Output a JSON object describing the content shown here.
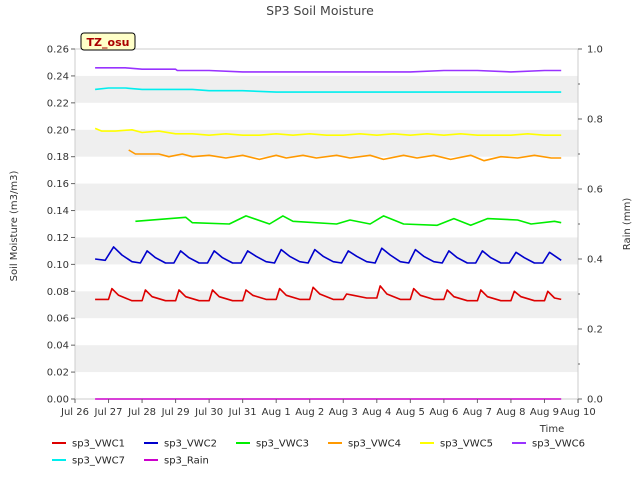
{
  "chart_data": {
    "type": "line",
    "title": "SP3 Soil Moisture",
    "xlabel": "Time",
    "ylabel": "Soil Moisture (m3/m3)",
    "y2label": "Rain (mm)",
    "badge": "TZ_osu",
    "xlim": [
      0,
      15
    ],
    "ylim": [
      0,
      0.26
    ],
    "y2lim": [
      0,
      1.0
    ],
    "x_ticks": [
      "Jul 26",
      "Jul 27",
      "Jul 28",
      "Jul 29",
      "Jul 30",
      "Jul 31",
      "Aug 1",
      "Aug 2",
      "Aug 3",
      "Aug 4",
      "Aug 5",
      "Aug 6",
      "Aug 7",
      "Aug 8",
      "Aug 9",
      "Aug 10"
    ],
    "y_ticks": [
      "0.00",
      "0.02",
      "0.04",
      "0.06",
      "0.08",
      "0.10",
      "0.12",
      "0.14",
      "0.16",
      "0.18",
      "0.20",
      "0.22",
      "0.24",
      "0.26"
    ],
    "y2_ticks": [
      "0.0",
      "0.2",
      "0.4",
      "0.6",
      "0.8",
      "1.0"
    ],
    "grid": "horizontal bands",
    "legend": "bottom",
    "series": [
      {
        "name": "sp3_VWC1",
        "color": "#dd0000",
        "axis": "left",
        "x": [
          0.6,
          1.0,
          1.1,
          1.3,
          1.7,
          2.0,
          2.1,
          2.3,
          2.7,
          3.0,
          3.1,
          3.3,
          3.7,
          4.0,
          4.1,
          4.3,
          4.7,
          5.0,
          5.1,
          5.3,
          5.7,
          6.0,
          6.1,
          6.3,
          6.7,
          7.0,
          7.1,
          7.3,
          7.7,
          8.0,
          8.1,
          8.3,
          8.7,
          9.0,
          9.1,
          9.3,
          9.7,
          10.0,
          10.1,
          10.3,
          10.7,
          11.0,
          11.1,
          11.3,
          11.7,
          12.0,
          12.1,
          12.3,
          12.7,
          13.0,
          13.1,
          13.3,
          13.7,
          14.0,
          14.1,
          14.3,
          14.5
        ],
        "y": [
          0.074,
          0.074,
          0.082,
          0.077,
          0.073,
          0.073,
          0.081,
          0.076,
          0.073,
          0.073,
          0.081,
          0.076,
          0.073,
          0.073,
          0.081,
          0.076,
          0.073,
          0.073,
          0.081,
          0.077,
          0.074,
          0.074,
          0.082,
          0.077,
          0.074,
          0.074,
          0.083,
          0.078,
          0.074,
          0.074,
          0.078,
          0.077,
          0.075,
          0.075,
          0.084,
          0.078,
          0.074,
          0.074,
          0.082,
          0.077,
          0.074,
          0.074,
          0.081,
          0.076,
          0.073,
          0.073,
          0.081,
          0.076,
          0.073,
          0.073,
          0.08,
          0.076,
          0.073,
          0.073,
          0.08,
          0.075,
          0.074
        ]
      },
      {
        "name": "sp3_VWC2",
        "color": "#0000cc",
        "axis": "left",
        "x": [
          0.6,
          0.9,
          1.15,
          1.4,
          1.7,
          1.95,
          2.15,
          2.4,
          2.7,
          2.95,
          3.15,
          3.4,
          3.7,
          3.95,
          4.15,
          4.4,
          4.7,
          4.95,
          5.15,
          5.4,
          5.7,
          5.95,
          6.15,
          6.4,
          6.7,
          6.95,
          7.15,
          7.4,
          7.7,
          7.95,
          8.15,
          8.4,
          8.7,
          8.95,
          9.15,
          9.4,
          9.7,
          9.95,
          10.15,
          10.4,
          10.7,
          10.95,
          11.15,
          11.4,
          11.7,
          11.95,
          12.15,
          12.4,
          12.7,
          12.95,
          13.15,
          13.4,
          13.7,
          13.95,
          14.15,
          14.5
        ],
        "y": [
          0.104,
          0.103,
          0.113,
          0.107,
          0.102,
          0.101,
          0.11,
          0.105,
          0.101,
          0.101,
          0.11,
          0.105,
          0.101,
          0.101,
          0.11,
          0.105,
          0.101,
          0.101,
          0.11,
          0.106,
          0.102,
          0.101,
          0.111,
          0.106,
          0.102,
          0.101,
          0.111,
          0.106,
          0.102,
          0.101,
          0.11,
          0.106,
          0.102,
          0.101,
          0.112,
          0.107,
          0.102,
          0.101,
          0.111,
          0.106,
          0.102,
          0.101,
          0.11,
          0.105,
          0.101,
          0.101,
          0.11,
          0.105,
          0.101,
          0.101,
          0.109,
          0.105,
          0.101,
          0.101,
          0.109,
          0.103
        ]
      },
      {
        "name": "sp3_VWC3",
        "color": "#00ee00",
        "axis": "left",
        "x": [
          1.8,
          3.3,
          3.5,
          4.6,
          5.1,
          5.8,
          6.2,
          6.5,
          7.8,
          8.2,
          8.8,
          9.2,
          9.8,
          10.8,
          11.3,
          11.8,
          12.3,
          13.2,
          13.6,
          14.3,
          14.5
        ],
        "y": [
          0.132,
          0.135,
          0.131,
          0.13,
          0.136,
          0.13,
          0.136,
          0.132,
          0.13,
          0.133,
          0.13,
          0.136,
          0.13,
          0.129,
          0.134,
          0.129,
          0.134,
          0.133,
          0.13,
          0.132,
          0.131
        ]
      },
      {
        "name": "sp3_VWC4",
        "color": "#ff9900",
        "axis": "left",
        "x": [
          1.6,
          1.8,
          2.5,
          2.8,
          3.2,
          3.5,
          4.0,
          4.5,
          5.0,
          5.5,
          6.0,
          6.3,
          6.8,
          7.2,
          7.8,
          8.2,
          8.8,
          9.2,
          9.8,
          10.2,
          10.7,
          11.2,
          11.8,
          12.2,
          12.7,
          13.2,
          13.7,
          14.2,
          14.5
        ],
        "y": [
          0.185,
          0.182,
          0.182,
          0.18,
          0.182,
          0.18,
          0.181,
          0.179,
          0.181,
          0.178,
          0.181,
          0.179,
          0.181,
          0.179,
          0.181,
          0.179,
          0.181,
          0.178,
          0.181,
          0.179,
          0.181,
          0.178,
          0.181,
          0.177,
          0.18,
          0.179,
          0.181,
          0.179,
          0.179
        ]
      },
      {
        "name": "sp3_VWC5",
        "color": "#ffff00",
        "axis": "left",
        "x": [
          0.6,
          0.8,
          1.2,
          1.7,
          2.0,
          2.5,
          3.0,
          3.5,
          4.0,
          4.5,
          5.0,
          5.5,
          6.0,
          6.5,
          7.0,
          7.5,
          8.0,
          8.5,
          9.0,
          9.5,
          10.0,
          10.5,
          11.0,
          11.5,
          12.0,
          12.5,
          13.0,
          13.5,
          14.0,
          14.5
        ],
        "y": [
          0.201,
          0.199,
          0.199,
          0.2,
          0.198,
          0.199,
          0.197,
          0.197,
          0.196,
          0.197,
          0.196,
          0.196,
          0.197,
          0.196,
          0.197,
          0.196,
          0.196,
          0.197,
          0.196,
          0.197,
          0.196,
          0.197,
          0.196,
          0.197,
          0.196,
          0.196,
          0.196,
          0.197,
          0.196,
          0.196
        ]
      },
      {
        "name": "sp3_VWC6",
        "color": "#9933ff",
        "axis": "left",
        "x": [
          0.6,
          1.5,
          2.0,
          3.0,
          3.05,
          4.0,
          5.0,
          6.0,
          7.0,
          8.0,
          9.0,
          10.0,
          11.0,
          12.0,
          13.0,
          14.0,
          14.5
        ],
        "y": [
          0.246,
          0.246,
          0.245,
          0.245,
          0.244,
          0.244,
          0.243,
          0.243,
          0.243,
          0.243,
          0.243,
          0.243,
          0.244,
          0.244,
          0.243,
          0.244,
          0.244
        ]
      },
      {
        "name": "sp3_VWC7",
        "color": "#00eeee",
        "axis": "left",
        "x": [
          0.6,
          1.0,
          1.5,
          2.0,
          2.5,
          3.0,
          3.5,
          4.0,
          4.5,
          5.0,
          6.0,
          7.0,
          8.0,
          9.0,
          10.0,
          11.0,
          12.0,
          13.0,
          14.0,
          14.5
        ],
        "y": [
          0.23,
          0.231,
          0.231,
          0.23,
          0.23,
          0.23,
          0.23,
          0.229,
          0.229,
          0.229,
          0.228,
          0.228,
          0.228,
          0.228,
          0.228,
          0.228,
          0.228,
          0.228,
          0.228,
          0.228
        ]
      },
      {
        "name": "sp3_Rain",
        "color": "#cc00cc",
        "axis": "right",
        "x": [
          0.6,
          14.5
        ],
        "y": [
          0.0,
          0.0
        ]
      }
    ]
  }
}
